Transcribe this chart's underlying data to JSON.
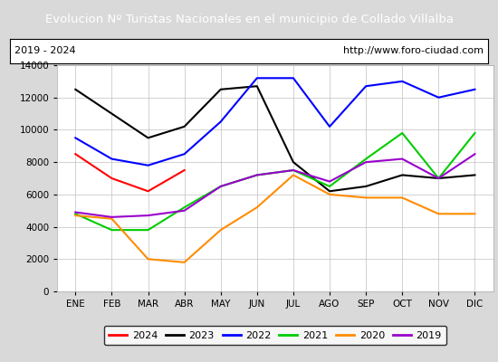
{
  "title": "Evolucion Nº Turistas Nacionales en el municipio de Collado Villalba",
  "subtitle_left": "2019 - 2024",
  "subtitle_right": "http://www.foro-ciudad.com",
  "title_bgcolor": "#4472c4",
  "title_fgcolor": "#ffffff",
  "months": [
    "ENE",
    "FEB",
    "MAR",
    "ABR",
    "MAY",
    "JUN",
    "JUL",
    "AGO",
    "SEP",
    "OCT",
    "NOV",
    "DIC"
  ],
  "ylim": [
    0,
    14000
  ],
  "yticks": [
    0,
    2000,
    4000,
    6000,
    8000,
    10000,
    12000,
    14000
  ],
  "series": {
    "2024": {
      "color": "#ff0000",
      "data": [
        8500,
        7000,
        6200,
        7500,
        null,
        null,
        null,
        null,
        null,
        null,
        null,
        null
      ]
    },
    "2023": {
      "color": "#000000",
      "data": [
        12500,
        11000,
        9500,
        10200,
        12500,
        12700,
        8000,
        6200,
        6500,
        7200,
        7000,
        7200
      ]
    },
    "2022": {
      "color": "#0000ff",
      "data": [
        9500,
        8200,
        7800,
        8500,
        10500,
        13200,
        13200,
        10200,
        12700,
        13000,
        12000,
        12500
      ]
    },
    "2021": {
      "color": "#00cc00",
      "data": [
        4800,
        3800,
        3800,
        5200,
        6500,
        7200,
        7500,
        6500,
        8200,
        9800,
        7000,
        9800
      ]
    },
    "2020": {
      "color": "#ff8c00",
      "data": [
        4700,
        4500,
        2000,
        1800,
        3800,
        5200,
        7200,
        6000,
        5800,
        5800,
        4800,
        4800
      ]
    },
    "2019": {
      "color": "#9900cc",
      "data": [
        4900,
        4600,
        4700,
        5000,
        6500,
        7200,
        7500,
        6800,
        8000,
        8200,
        7000,
        8500
      ]
    }
  },
  "background_color": "#d9d9d9",
  "plot_bg_color": "#ffffff",
  "grid_color": "#c0c0c0"
}
